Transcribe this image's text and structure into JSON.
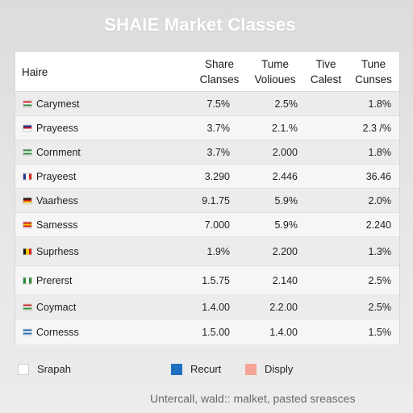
{
  "title": "SHAIE Market Classes",
  "header": {
    "name": "Haire",
    "share": [
      "Share",
      "Clanses"
    ],
    "tume": [
      "Tume",
      "Volioues"
    ],
    "tive": [
      "Tive",
      "Calest"
    ],
    "tune": [
      "Tune",
      "Cunses"
    ]
  },
  "rows": [
    {
      "name": "Carymest",
      "share": "7.5%",
      "volumes": "2.5%",
      "tune": "1.8%",
      "flag": "hungary-icon",
      "colors": [
        "#cf2b2b",
        "#ffffff",
        "#2e8b3a"
      ]
    },
    {
      "name": "Prayeess",
      "share": "3.7%",
      "volumes": "2.1.%",
      "tune": "2.3 /%",
      "flag": "uk-icon",
      "colors": [
        "#1f3b8a",
        "#c8102e",
        "#ffffff"
      ]
    },
    {
      "name": "Cornment",
      "share": "3.7%",
      "volumes": "2.000",
      "tune": "1.8%",
      "flag": "green-white-icon",
      "colors": [
        "#2e8b3a",
        "#ffffff",
        "#2e8b3a"
      ]
    },
    {
      "name": "Prayeest",
      "share": "3.290",
      "volumes": "2.446",
      "tune": "36.46",
      "flag": "france-icon",
      "colors": [
        "#1f3b8a",
        "#ffffff",
        "#d52b1e"
      ]
    },
    {
      "name": "Vaarhess",
      "share": "9.1.75",
      "volumes": "5.9%",
      "tune": "2.0%",
      "flag": "germany-icon",
      "colors": [
        "#111111",
        "#cc1f1f",
        "#f2c200"
      ]
    },
    {
      "name": "Samesss",
      "share": "7.000",
      "volumes": "5.9%",
      "tune": "2.240",
      "flag": "spain-icon",
      "colors": [
        "#d02020",
        "#f5c400",
        "#d02020"
      ]
    },
    {
      "name": "Suprhess",
      "share": "1.9%",
      "volumes": "2.200",
      "tune": "1.3%",
      "flag": "belgium-icon",
      "colors": [
        "#111111",
        "#f5c400",
        "#d02020"
      ]
    },
    {
      "name": "Prererst",
      "share": "1.5.75",
      "volumes": "2.140",
      "tune": "2.5%",
      "flag": "nigeria-icon",
      "colors": [
        "#2e8b3a",
        "#ffffff",
        "#2e8b3a"
      ]
    },
    {
      "name": "Coymact",
      "share": "1.4.00",
      "volumes": "2.2.00",
      "tune": "2.5%",
      "flag": "red-white-icon",
      "colors": [
        "#cf2b2b",
        "#ffffff",
        "#2e8b3a"
      ]
    },
    {
      "name": "Cornesss",
      "share": "1.5.00",
      "volumes": "1.4.00",
      "tune": "1.5%",
      "flag": "blue-stripes-icon",
      "colors": [
        "#2b6cb0",
        "#ffffff",
        "#2b6cb0"
      ]
    }
  ],
  "legend": [
    {
      "label": "Srapah",
      "color": "#ffffff"
    },
    {
      "label": "Recurt",
      "color": "#1f6fc1"
    },
    {
      "label": "Disply",
      "color": "#f4a597"
    }
  ],
  "footnote": "Untercall, wald:: malket, pasted sreasces"
}
